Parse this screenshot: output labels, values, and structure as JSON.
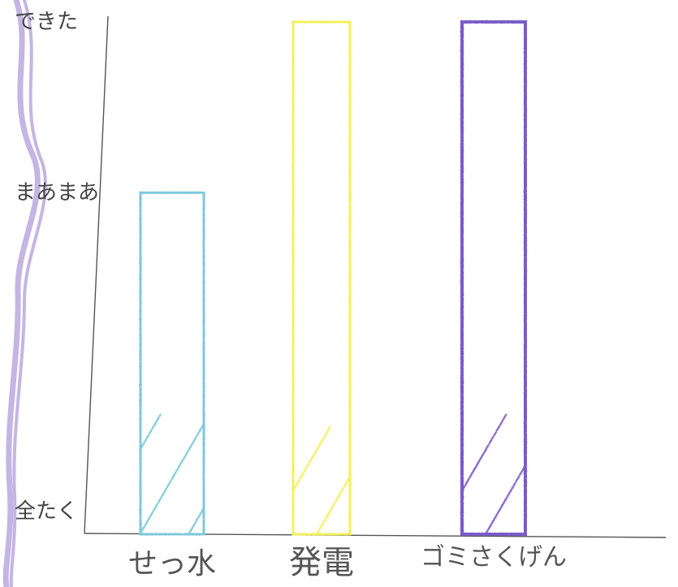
{
  "chart_data": {
    "type": "bar",
    "categories": [
      "せっ水",
      "発電",
      "ゴミさくげん"
    ],
    "values": [
      2,
      3,
      3
    ],
    "ylim": [
      1,
      3
    ],
    "ytick_labels": [
      "全たく",
      "まあまあ",
      "できた"
    ],
    "grid": false,
    "colors": {
      "せっ水": "#7ec8dc",
      "発電": "#f4f05a",
      "ゴミさくげん": "#7a5cc8"
    },
    "margin_stroke_color": "#a58fd6",
    "axis_color": "#555555"
  }
}
